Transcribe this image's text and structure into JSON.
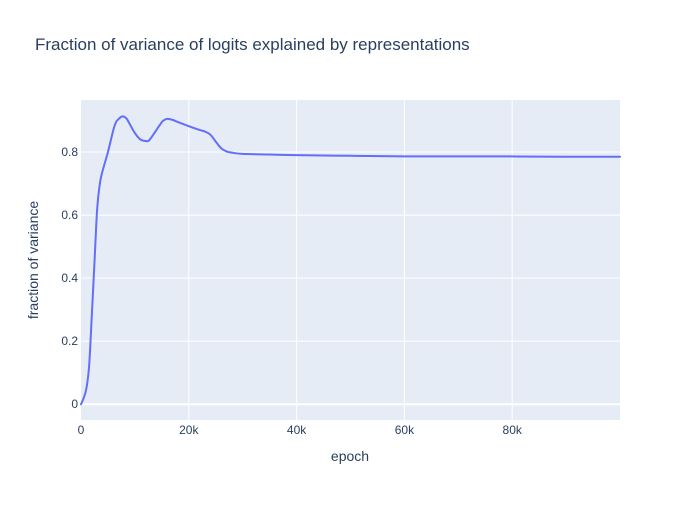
{
  "chart_data": {
    "type": "line",
    "title": "Fraction of variance of logits explained by representations",
    "xlabel": "epoch",
    "ylabel": "fraction of variance",
    "xlim": [
      0,
      99999
    ],
    "ylim": [
      -0.05,
      0.965
    ],
    "x_ticks": [
      {
        "value": 0,
        "label": "0"
      },
      {
        "value": 20000,
        "label": "20k"
      },
      {
        "value": 40000,
        "label": "40k"
      },
      {
        "value": 60000,
        "label": "60k"
      },
      {
        "value": 80000,
        "label": "80k"
      }
    ],
    "y_ticks": [
      {
        "value": 0,
        "label": "0"
      },
      {
        "value": 0.2,
        "label": "0.2"
      },
      {
        "value": 0.4,
        "label": "0.4"
      },
      {
        "value": 0.6,
        "label": "0.6"
      },
      {
        "value": 0.8,
        "label": "0.8"
      }
    ],
    "grid": true,
    "legend": false,
    "colors": {
      "line": "#636efa",
      "plot_background": "#e5ecf6",
      "grid": "#ffffff",
      "text": "#2a3f5f"
    },
    "series": [
      {
        "x": [
          0,
          500,
          1000,
          1500,
          2000,
          2500,
          3000,
          3500,
          4000,
          5000,
          6000,
          6500,
          7000,
          7500,
          8000,
          8500,
          9000,
          10000,
          11000,
          12000,
          12500,
          13000,
          14000,
          15000,
          15500,
          16000,
          17000,
          18000,
          20000,
          22000,
          23000,
          24000,
          25000,
          26000,
          27000,
          28000,
          30000,
          35000,
          40000,
          50000,
          60000,
          70000,
          80000,
          90000,
          99999
        ],
        "y": [
          0.0,
          0.02,
          0.05,
          0.12,
          0.28,
          0.45,
          0.62,
          0.7,
          0.74,
          0.8,
          0.87,
          0.895,
          0.905,
          0.912,
          0.912,
          0.905,
          0.89,
          0.86,
          0.84,
          0.835,
          0.835,
          0.845,
          0.87,
          0.895,
          0.902,
          0.905,
          0.902,
          0.895,
          0.882,
          0.87,
          0.865,
          0.855,
          0.833,
          0.812,
          0.802,
          0.798,
          0.794,
          0.792,
          0.79,
          0.788,
          0.786,
          0.786,
          0.786,
          0.785,
          0.785
        ]
      }
    ]
  }
}
